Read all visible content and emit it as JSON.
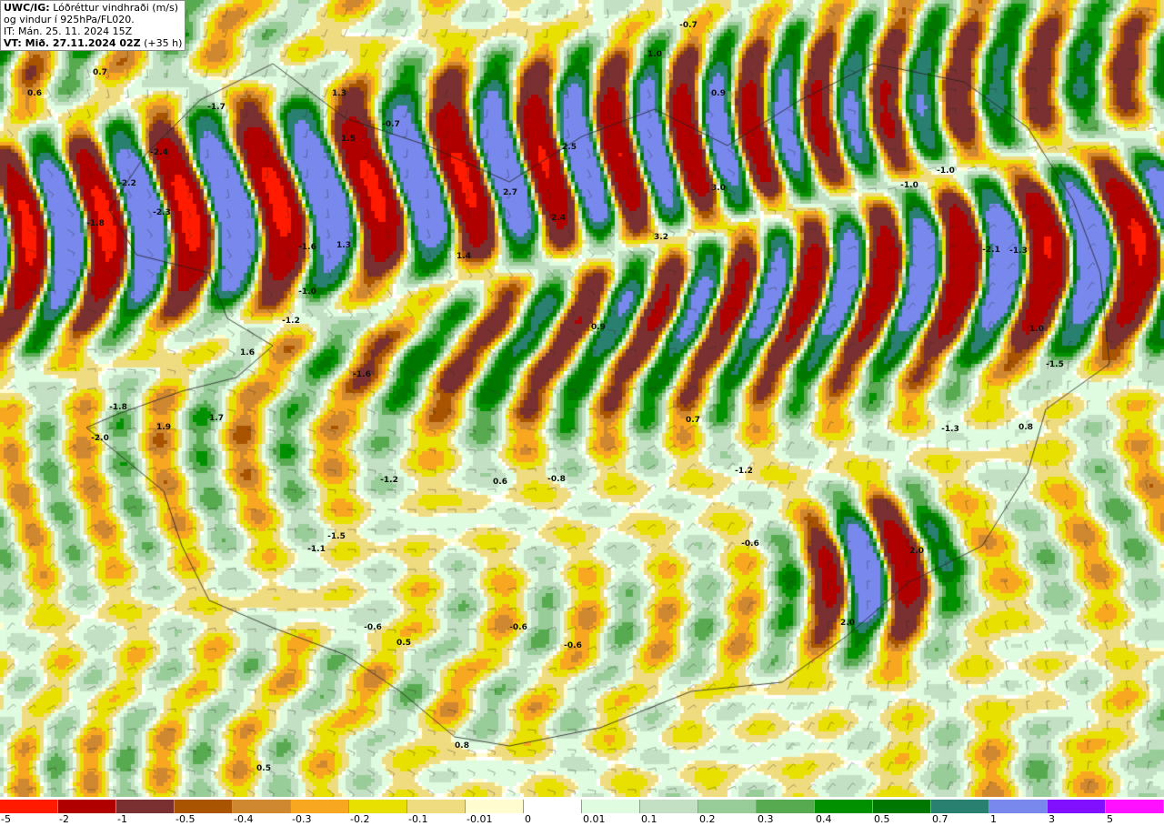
{
  "title": {
    "line1_bold": "UWC/IG:",
    "line1": "Lóðréttur vindhraði (m/s)",
    "line2": "og vindur í 925hPa/FL020.",
    "line3": "IT: Mán. 25. 11. 2024 15Z",
    "line4_bold": "VT: Mið. 27.11.2024 02Z",
    "line4": "(+35 h)"
  },
  "legend": {
    "colors": [
      "#ff1a00",
      "#b00000",
      "#7a3030",
      "#a85400",
      "#d08830",
      "#f8a820",
      "#e8e000",
      "#f0dc80",
      "#fffcd0",
      "#ffffff",
      "#e0fce0",
      "#c4e0c4",
      "#98cc98",
      "#58aa50",
      "#009000",
      "#007800",
      "#2a8070",
      "#7888ec",
      "#8010ff",
      "#ff10ff"
    ],
    "ticks": [
      "-5",
      "-2",
      "-1",
      "-0.5",
      "-0.4",
      "-0.3",
      "-0.2",
      "-0.1",
      "-0.01",
      "0",
      "0.01",
      "0.1",
      "0.2",
      "0.3",
      "0.4",
      "0.5",
      "0.7",
      "1",
      "3",
      "5"
    ]
  },
  "contour_labels": [
    "-0.7",
    "1.0",
    "0.7",
    "0.6",
    "1.3",
    "-0.7",
    "1.5",
    "0.9",
    "3.0",
    "3.2",
    "-2.0",
    "1.9",
    "1.7",
    "2.0",
    "2.0",
    "0.8",
    "0.5",
    "-1.7",
    "-2.2",
    "-2.4",
    "-2.3",
    "-1.8",
    "-1.6",
    "1.3",
    "-1.2",
    "-1.6",
    "1.6",
    "-1.0",
    "-1.2",
    "-1.8",
    "0.9",
    "-1.0",
    "-1.0",
    "-0.6",
    "-1.5",
    "1.0",
    "0.8",
    "-1.2",
    "-0.6",
    "0.6",
    "-0.6",
    "0.5",
    "-0.6",
    "-1.3",
    "-0.8",
    "2.5",
    "2.7",
    "2.4",
    "-1.1",
    "1.4",
    "-1.3",
    "-1.5",
    "-2.1",
    "0.7"
  ]
}
